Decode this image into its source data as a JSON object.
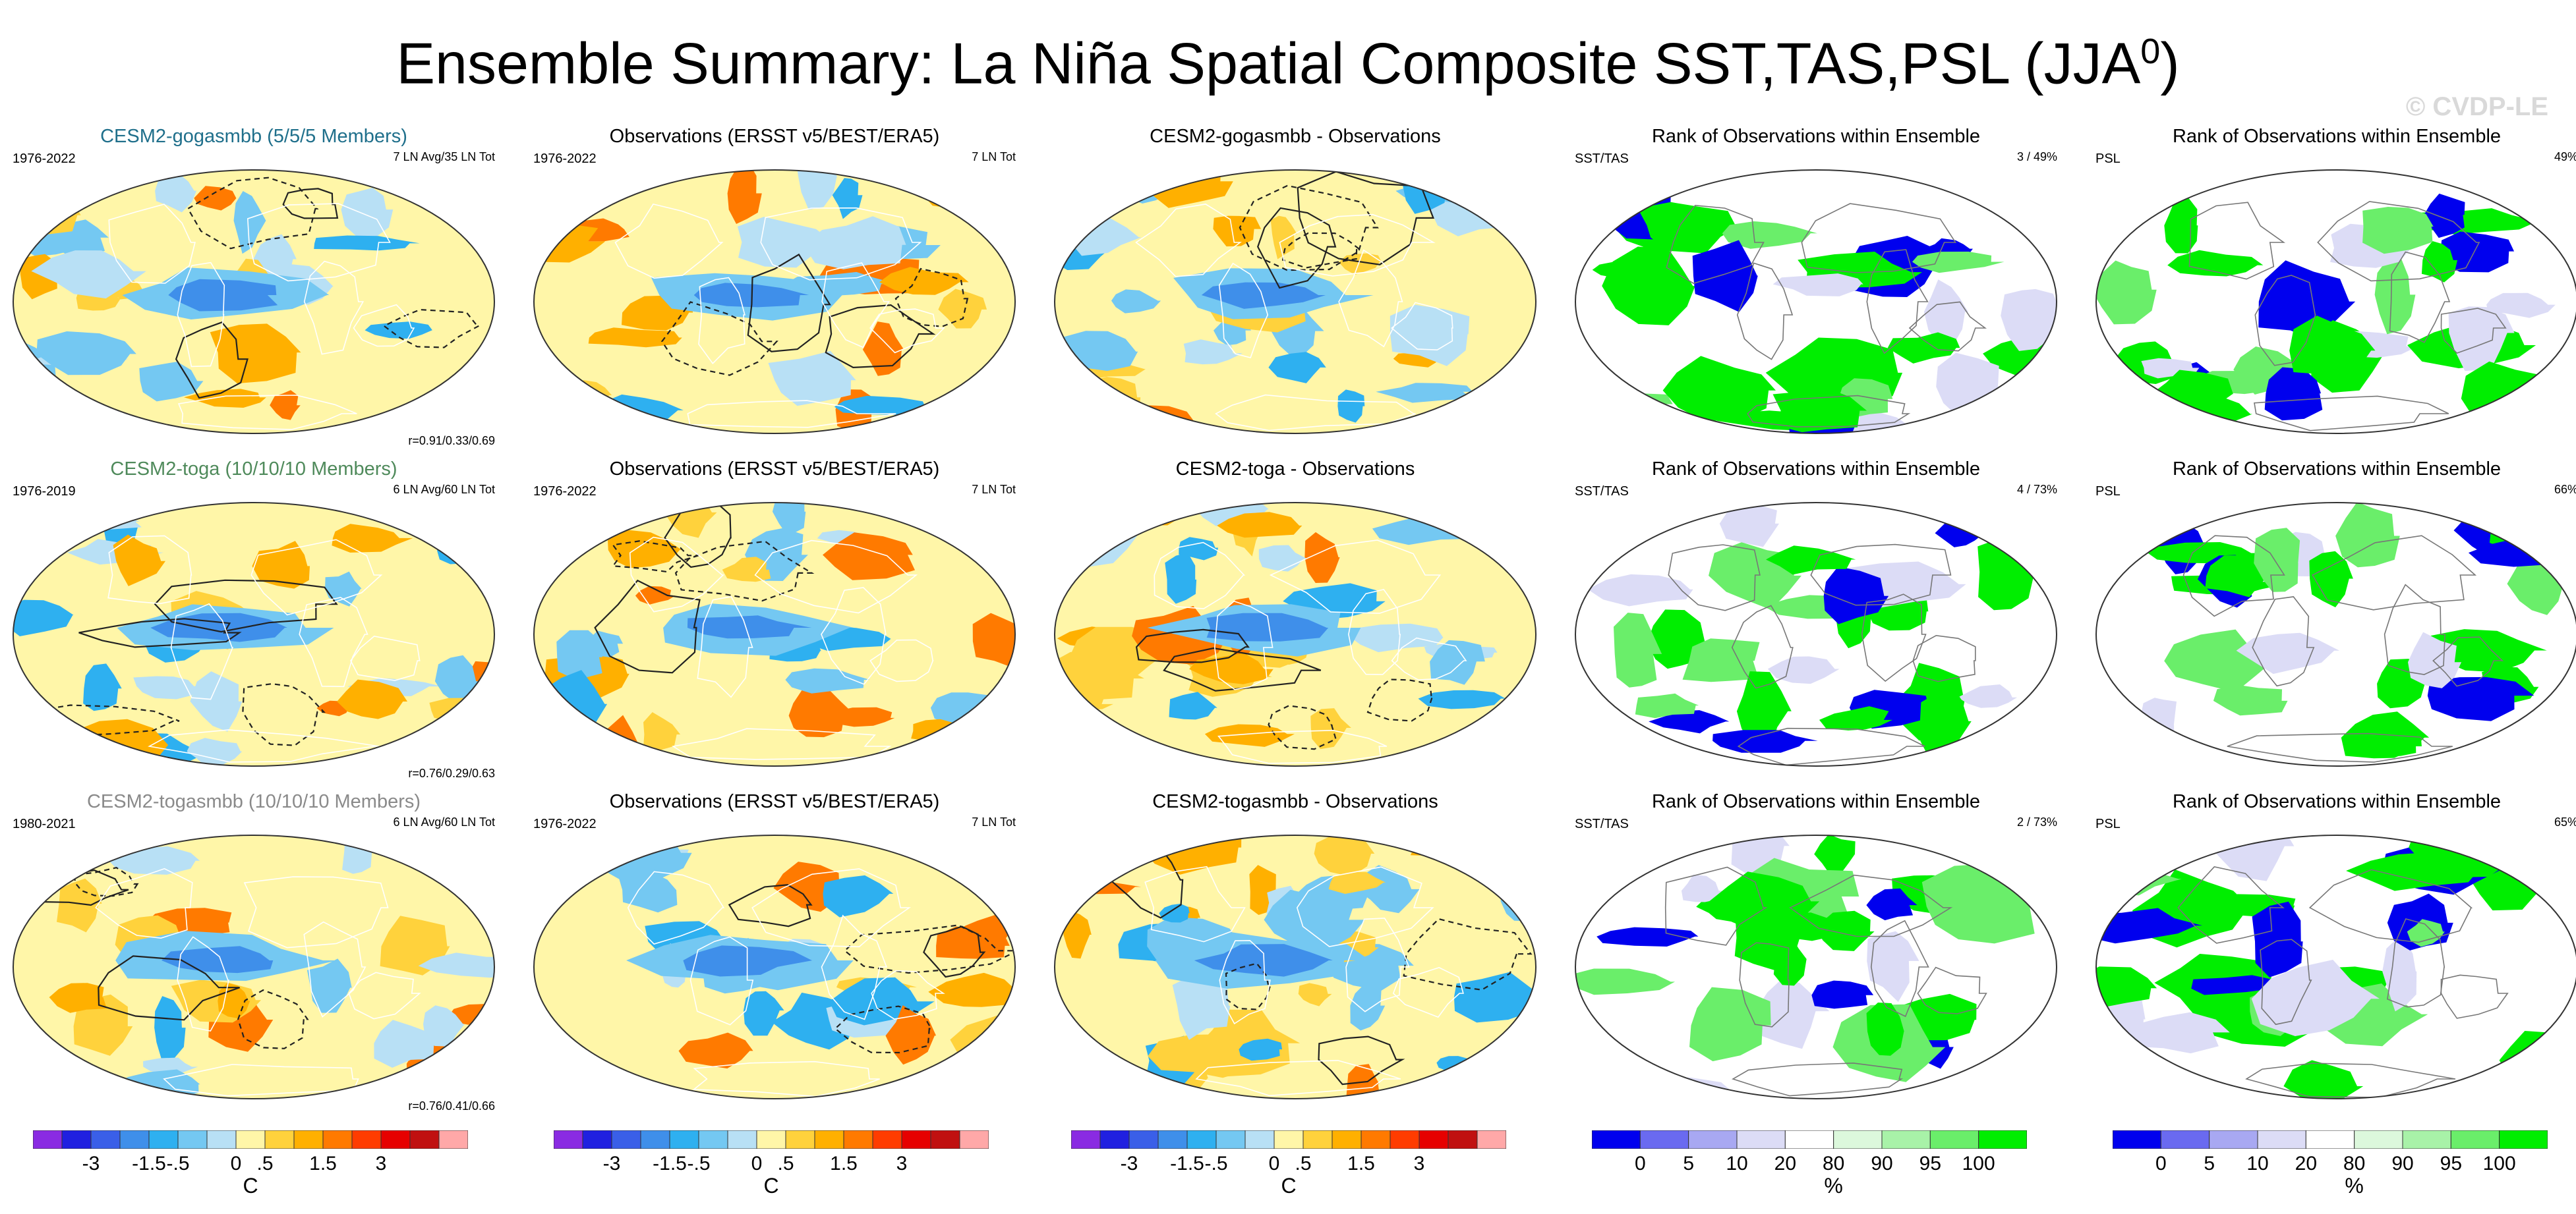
{
  "figure": {
    "title": "Ensemble Summary: La Niña Spatial Composite SST,TAS,PSL (JJA",
    "title_sup": "0",
    "title_close": ")",
    "copyright": "© CVDP-LE"
  },
  "chart_data": {
    "type": "heatmap",
    "description_layout": "3 rows x 5 columns of global map panels",
    "rows": [
      {
        "model": "CESM2-gogasmbb (5/5/5 Members)",
        "model_color": "#1f6f8b",
        "panels": [
          {
            "kind": "model",
            "title": "CESM2-gogasmbb (5/5/5 Members)",
            "left_label": "1976-2022",
            "right_label": "7 LN Avg/35 LN Tot",
            "corr": "r=0.91/0.33/0.69"
          },
          {
            "kind": "obs",
            "title": "Observations (ERSST v5/BEST/ERA5)",
            "left_label": "1976-2022",
            "right_label": "7 LN Tot"
          },
          {
            "kind": "diff",
            "title": "CESM2-gogasmbb - Observations"
          },
          {
            "kind": "rank",
            "title": "Rank of Observations within Ensemble",
            "left_label": "SST/TAS",
            "right_label": "3 /  49%"
          },
          {
            "kind": "rank",
            "title": "Rank of Observations within Ensemble",
            "left_label": "PSL",
            "right_label": "49%"
          }
        ]
      },
      {
        "model": "CESM2-toga (10/10/10 Members)",
        "model_color": "#4f8a5b",
        "panels": [
          {
            "kind": "model",
            "title": "CESM2-toga (10/10/10 Members)",
            "left_label": "1976-2019",
            "right_label": "6 LN Avg/60 LN Tot",
            "corr": "r=0.76/0.29/0.63"
          },
          {
            "kind": "obs",
            "title": "Observations (ERSST v5/BEST/ERA5)",
            "left_label": "1976-2022",
            "right_label": "7 LN Tot"
          },
          {
            "kind": "diff",
            "title": "CESM2-toga - Observations"
          },
          {
            "kind": "rank",
            "title": "Rank of Observations within Ensemble",
            "left_label": "SST/TAS",
            "right_label": "4 /  73%"
          },
          {
            "kind": "rank",
            "title": "Rank of Observations within Ensemble",
            "left_label": "PSL",
            "right_label": "66%"
          }
        ]
      },
      {
        "model": "CESM2-togasmbb (10/10/10 Members)",
        "model_color": "#8a8a8a",
        "panels": [
          {
            "kind": "model",
            "title": "CESM2-togasmbb (10/10/10 Members)",
            "left_label": "1980-2021",
            "right_label": "6 LN Avg/60 LN Tot",
            "corr": "r=0.76/0.41/0.66"
          },
          {
            "kind": "obs",
            "title": "Observations (ERSST v5/BEST/ERA5)",
            "left_label": "1976-2022",
            "right_label": "7 LN Tot"
          },
          {
            "kind": "diff",
            "title": "CESM2-togasmbb - Observations"
          },
          {
            "kind": "rank",
            "title": "Rank of Observations within Ensemble",
            "left_label": "SST/TAS",
            "right_label": "2 /  73%"
          },
          {
            "kind": "rank",
            "title": "Rank of Observations within Ensemble",
            "left_label": "PSL",
            "right_label": "65%"
          }
        ]
      }
    ],
    "colorbars": [
      {
        "type": "anomaly",
        "unit": "C",
        "ticks": [
          "-3",
          "-1.5",
          "-.5",
          "0",
          ".5",
          "1.5",
          "3"
        ],
        "colors": [
          "#8a2be2",
          "#2020e0",
          "#3a5fe8",
          "#3f8fea",
          "#2eb0f0",
          "#74c8f2",
          "#b8e0f5",
          "#fff6a8",
          "#ffd23c",
          "#ffb000",
          "#ff7a00",
          "#ff3c00",
          "#e60000",
          "#c01010",
          "#ffa8a8"
        ]
      },
      {
        "type": "anomaly",
        "unit": "C",
        "ticks": [
          "-3",
          "-1.5",
          "-.5",
          "0",
          ".5",
          "1.5",
          "3"
        ],
        "colors": [
          "#8a2be2",
          "#2020e0",
          "#3a5fe8",
          "#3f8fea",
          "#2eb0f0",
          "#74c8f2",
          "#b8e0f5",
          "#fff6a8",
          "#ffd23c",
          "#ffb000",
          "#ff7a00",
          "#ff3c00",
          "#e60000",
          "#c01010",
          "#ffa8a8"
        ]
      },
      {
        "type": "anomaly",
        "unit": "C",
        "ticks": [
          "-3",
          "-1.5",
          "-.5",
          "0",
          ".5",
          "1.5",
          "3"
        ],
        "colors": [
          "#8a2be2",
          "#2020e0",
          "#3a5fe8",
          "#3f8fea",
          "#2eb0f0",
          "#74c8f2",
          "#b8e0f5",
          "#fff6a8",
          "#ffd23c",
          "#ffb000",
          "#ff7a00",
          "#ff3c00",
          "#e60000",
          "#c01010",
          "#ffa8a8"
        ]
      },
      {
        "type": "rank",
        "unit": "%",
        "ticks": [
          "0",
          "5",
          "10",
          "20",
          "80",
          "90",
          "95",
          "100"
        ],
        "colors": [
          "#0000ee",
          "#6a6af0",
          "#a8a8f2",
          "#dcdcf6",
          "#ffffff",
          "#dcf8dc",
          "#a8f2a8",
          "#6aee6a",
          "#00ee00"
        ]
      },
      {
        "type": "rank",
        "unit": "%",
        "ticks": [
          "0",
          "5",
          "10",
          "20",
          "80",
          "90",
          "95",
          "100"
        ],
        "colors": [
          "#0000ee",
          "#6a6af0",
          "#a8a8f2",
          "#dcdcf6",
          "#ffffff",
          "#dcf8dc",
          "#a8f2a8",
          "#6aee6a",
          "#00ee00"
        ]
      }
    ]
  }
}
